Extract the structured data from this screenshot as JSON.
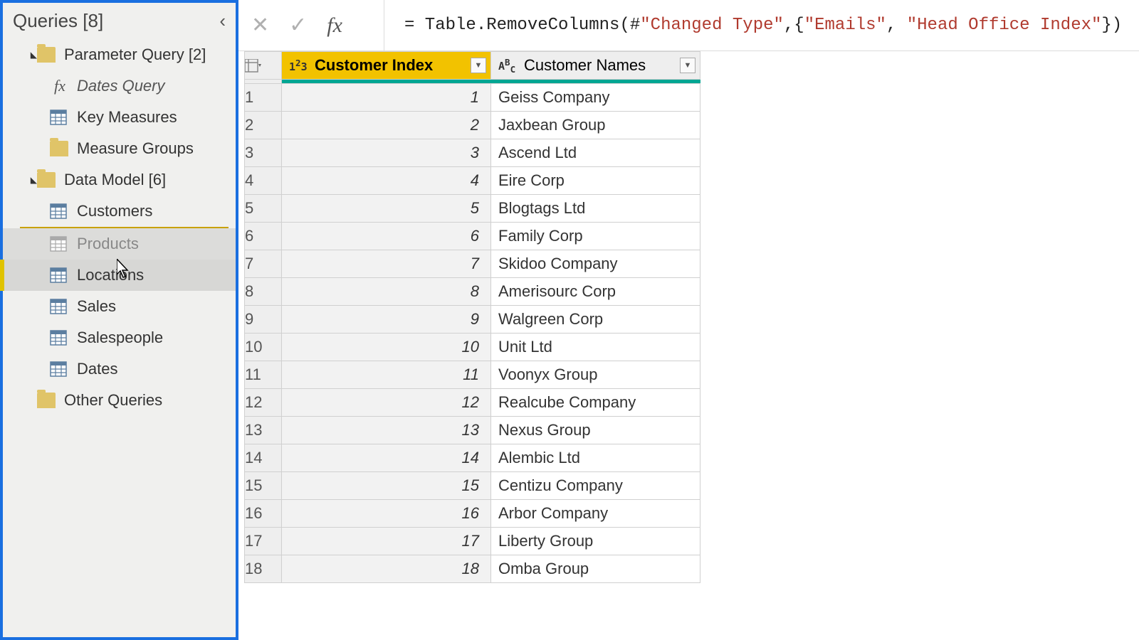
{
  "colors": {
    "panel_border": "#1a6fe0",
    "panel_bg": "#f0f0ee",
    "folder": "#e0c468",
    "selected_accent": "#e0c300",
    "header_selected": "#f2c200",
    "header_accent": "#00a693",
    "grid_border": "#d0d0d0",
    "formula_string": "#b03a2e"
  },
  "queries_panel": {
    "title": "Queries [8]",
    "groups": [
      {
        "label": "Parameter Query [2]",
        "expanded": true,
        "items": [
          {
            "label": "Dates Query",
            "icon": "fx"
          },
          {
            "label": "Key Measures",
            "icon": "table"
          },
          {
            "label": "Measure Groups",
            "icon": "folder"
          }
        ]
      },
      {
        "label": "Data Model [6]",
        "expanded": true,
        "items": [
          {
            "label": "Customers",
            "icon": "table"
          },
          {
            "label": "Products",
            "icon": "table",
            "dragging": true
          },
          {
            "label": "Locations",
            "icon": "table",
            "selected": true
          },
          {
            "label": "Sales",
            "icon": "table"
          },
          {
            "label": "Salespeople",
            "icon": "table"
          },
          {
            "label": "Dates",
            "icon": "table"
          }
        ]
      },
      {
        "label": "Other Queries",
        "expanded": false,
        "items": []
      }
    ]
  },
  "formula": {
    "prefix": "= Table.RemoveColumns(#",
    "str1": "\"Changed Type\"",
    "mid": ",{",
    "str2": "\"Emails\"",
    "mid2": ", ",
    "str3": "\"Head Office Index\"",
    "suffix": "})"
  },
  "table": {
    "columns": [
      {
        "name": "Customer Index",
        "type": "number",
        "type_label": "1²3",
        "selected": true
      },
      {
        "name": "Customer Names",
        "type": "text",
        "type_label": "AᴮC",
        "selected": false
      }
    ],
    "rows": [
      {
        "idx": 1,
        "name": "Geiss Company"
      },
      {
        "idx": 2,
        "name": "Jaxbean Group"
      },
      {
        "idx": 3,
        "name": "Ascend Ltd"
      },
      {
        "idx": 4,
        "name": "Eire Corp"
      },
      {
        "idx": 5,
        "name": "Blogtags Ltd"
      },
      {
        "idx": 6,
        "name": "Family Corp"
      },
      {
        "idx": 7,
        "name": "Skidoo Company"
      },
      {
        "idx": 8,
        "name": "Amerisourc Corp"
      },
      {
        "idx": 9,
        "name": "Walgreen Corp"
      },
      {
        "idx": 10,
        "name": "Unit Ltd"
      },
      {
        "idx": 11,
        "name": "Voonyx Group"
      },
      {
        "idx": 12,
        "name": "Realcube Company"
      },
      {
        "idx": 13,
        "name": "Nexus Group"
      },
      {
        "idx": 14,
        "name": "Alembic Ltd"
      },
      {
        "idx": 15,
        "name": "Centizu Company"
      },
      {
        "idx": 16,
        "name": "Arbor Company"
      },
      {
        "idx": 17,
        "name": "Liberty Group"
      },
      {
        "idx": 18,
        "name": "Omba Group"
      }
    ]
  }
}
